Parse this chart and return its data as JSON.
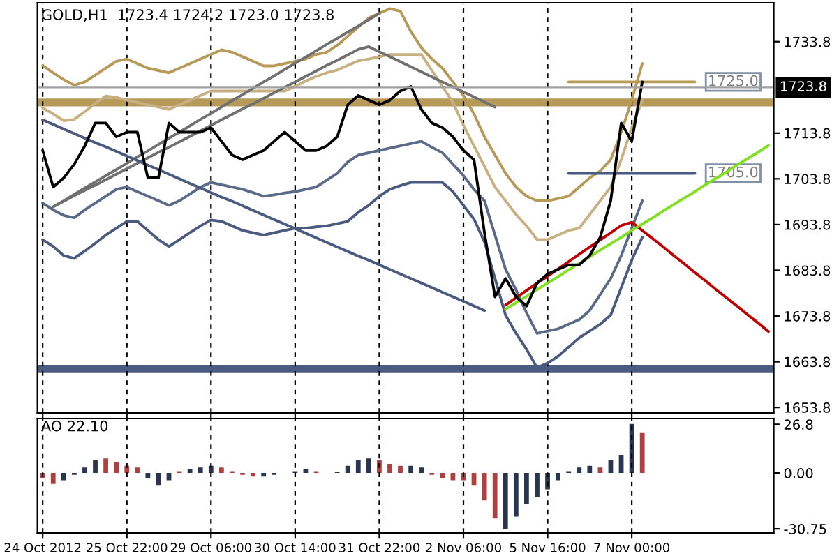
{
  "chart_data": [
    {
      "type": "line",
      "title": "GOLD,H1  1723.4 1724.2 1723.0 1723.8",
      "ylim": [
        1652.6,
        1742.3
      ],
      "categories": [
        null,
        null,
        null,
        null,
        null,
        null,
        null,
        null,
        null,
        null,
        null,
        null,
        null,
        null,
        null,
        null,
        null,
        null,
        null,
        null,
        null,
        null,
        null,
        null,
        null,
        null,
        null,
        null,
        null,
        null,
        null,
        null,
        null,
        null,
        null,
        null,
        null,
        null,
        null,
        null,
        null,
        null,
        null,
        null,
        null,
        null,
        null,
        null,
        null,
        null,
        null,
        null,
        null,
        null,
        null,
        null,
        null,
        null,
        null,
        null,
        null,
        null,
        null,
        null,
        null,
        null,
        null,
        null,
        null,
        null
      ],
      "yticks": [
        1653.8,
        1663.8,
        1673.8,
        1683.8,
        1693.8,
        1703.8,
        1713.8,
        1733.8
      ],
      "tick_labels": "y",
      "grid": "x",
      "series": [
        {
          "color": "#b89a58",
          "values": [
            1728.6,
            1727,
            1725.5,
            1724.3,
            1725,
            1726.5,
            1728,
            1729.5,
            1730,
            1729,
            1728,
            1727.5,
            1727,
            1728,
            1729,
            1730,
            1731,
            1732,
            1731.5,
            1730.5,
            1729.5,
            1728.5,
            1728.5,
            1729,
            1729.5,
            1730,
            1731,
            1731.5,
            1733,
            1735,
            1737,
            1739,
            1740,
            1741,
            1740.5,
            1736,
            1732.5,
            1730,
            1728,
            1725,
            1722,
            1718,
            1713,
            1709,
            1705,
            1702,
            1700,
            1699,
            1699,
            1699.5,
            1700,
            1702,
            1704,
            1705.5,
            1708,
            1714,
            1721,
            1729,
            null,
            null,
            null,
            null,
            null,
            null,
            null,
            null,
            null,
            null,
            null,
            null
          ]
        },
        {
          "color": "#c8b080",
          "values": [
            1719.3,
            1718,
            1716.5,
            1716.8,
            1718.5,
            1720.3,
            1721.9,
            1721.6,
            1721,
            1720.5,
            1720,
            1719.5,
            1719,
            1720,
            1721,
            1722,
            1723,
            1723,
            1723,
            1723,
            1723,
            1723,
            1723,
            1723,
            1724,
            1725.2,
            1726.2,
            1727,
            1727.6,
            1728.6,
            1729.6,
            1730,
            1730.5,
            1731,
            1731,
            1731,
            1731,
            1727.5,
            1724,
            1720.5,
            1715.5,
            1711,
            1706.5,
            1702,
            1699,
            1696,
            1693.5,
            1690.5,
            1690.5,
            1691.5,
            1692.5,
            1693,
            1696,
            1699,
            1702,
            1708,
            1715,
            1721,
            null,
            null,
            null,
            null,
            null,
            null,
            null,
            null,
            null,
            null,
            null,
            null
          ]
        },
        {
          "color": "#5a6a88",
          "values": [
            1698.5,
            1697,
            1695.8,
            1695.3,
            1697,
            1698.5,
            1700,
            1701.5,
            1702,
            1701,
            1700,
            1699,
            1698,
            1699,
            1700.5,
            1702,
            1703,
            1702.5,
            1702,
            1701.5,
            1700.8,
            1700,
            1700.3,
            1700.7,
            1701,
            1701.5,
            1702,
            1703.5,
            1705,
            1707.5,
            1709,
            1709.5,
            1710,
            1710.5,
            1711,
            1711.5,
            1712,
            1710.7,
            1709.5,
            1707,
            1704.5,
            1701.5,
            1699,
            1691.5,
            1684,
            1679.5,
            1674.5,
            1670,
            1670.5,
            1671,
            1672,
            1673,
            1675,
            1678.5,
            1682,
            1687,
            1693,
            1699,
            null,
            null,
            null,
            null,
            null,
            null,
            null,
            null,
            null,
            null,
            null,
            null
          ]
        },
        {
          "color": "#4a5a80",
          "values": [
            1690.5,
            1689,
            1687,
            1686.4,
            1688,
            1689.7,
            1691.5,
            1693,
            1694.5,
            1694.5,
            1692.5,
            1690.5,
            1689,
            1690.5,
            1692,
            1693.5,
            1694.8,
            1694.5,
            1693.5,
            1692.5,
            1692,
            1691.5,
            1692,
            1692.5,
            1693,
            1693,
            1693.3,
            1693.5,
            1694,
            1694.5,
            1696.5,
            1698,
            1700,
            1701.5,
            1702.3,
            1703,
            1703,
            1703,
            1703,
            1701,
            1698,
            1695,
            1690,
            1682,
            1674,
            1670,
            1666.5,
            1662.5,
            1663.5,
            1665,
            1667,
            1669,
            1670.5,
            1672,
            1674,
            1680,
            1686,
            1691,
            null,
            null,
            null,
            null,
            null,
            null,
            null,
            null,
            null,
            null,
            null,
            null
          ]
        },
        {
          "color": "#707070",
          "values": [
            null,
            1697.7,
            1699,
            1700.4,
            1701.8,
            1703.1,
            1704.5,
            1705.8,
            1707.2,
            1708.6,
            1709.9,
            1711.3,
            1712.7,
            1714,
            1715.4,
            1716.8,
            1718.1,
            1719.5,
            1720.9,
            1722.2,
            1723.6,
            1725,
            1726.3,
            1727.7,
            1729.1,
            1730.4,
            1731.8,
            1733.2,
            1734.5,
            1735.9,
            1737.2,
            1738.6,
            1740,
            null,
            null,
            null,
            null,
            null,
            null,
            null,
            null,
            null,
            null,
            null,
            null,
            null,
            null,
            null,
            null,
            null,
            null,
            null,
            null,
            null,
            null,
            null,
            null,
            null,
            null,
            null,
            null,
            null,
            null,
            null,
            null,
            null,
            null,
            null,
            null,
            null
          ]
        },
        {
          "color": "#707070",
          "values": [
            null,
            1697.7,
            1698.9,
            1700.1,
            1701.3,
            1702.4,
            1703.6,
            1704.8,
            1706,
            1707.2,
            1708.4,
            1709.6,
            1710.7,
            1711.9,
            1713.1,
            1714.3,
            1715.5,
            1716.7,
            1717.9,
            1719.1,
            1720.2,
            1721.4,
            1722.6,
            1723.8,
            1725,
            1726.2,
            1727.4,
            1728.6,
            1729.7,
            1730.9,
            1732.1,
            1732.7,
            1731.6,
            1730.5,
            1729.4,
            1728.3,
            1727.2,
            1726.1,
            1725,
            1723.9,
            1722.8,
            1721.7,
            1720.6,
            1719.5,
            null,
            null,
            null,
            null,
            null,
            null,
            null,
            null,
            null,
            null,
            null,
            null,
            null,
            null,
            null,
            null,
            null,
            null,
            null,
            null,
            null,
            null,
            null,
            null,
            null,
            null
          ]
        },
        {
          "color": "#4a5a80",
          "values": [
            1716.7,
            1715.7,
            1714.7,
            1713.7,
            1712.7,
            1711.7,
            1710.8,
            1709.8,
            1708.8,
            1707.8,
            1706.8,
            1705.8,
            1704.8,
            1703.8,
            1702.8,
            1701.8,
            1700.8,
            1699.8,
            1698.9,
            1697.9,
            1696.9,
            1695.9,
            1694.9,
            1693.9,
            1692.9,
            1691.9,
            1690.9,
            1689.9,
            1688.9,
            1687.9,
            1686.9,
            1686,
            1685,
            1684,
            1683,
            1682,
            1681,
            1680,
            1679,
            1678,
            1677,
            1676,
            1675,
            null,
            null,
            null,
            null,
            null,
            null,
            null,
            null,
            null,
            null,
            null,
            null,
            null,
            null,
            null,
            null,
            null,
            null,
            null,
            null,
            null,
            null,
            null,
            null,
            null,
            null,
            null
          ]
        },
        {
          "color": "#c00000",
          "values": [
            null,
            null,
            null,
            null,
            null,
            null,
            null,
            null,
            null,
            null,
            null,
            null,
            null,
            null,
            null,
            null,
            null,
            null,
            null,
            null,
            null,
            null,
            null,
            null,
            null,
            null,
            null,
            null,
            null,
            null,
            null,
            null,
            null,
            null,
            null,
            null,
            null,
            null,
            null,
            null,
            null,
            null,
            null,
            null,
            1676.2,
            1677.8,
            1679.4,
            1681,
            1682.5,
            1684.1,
            1685.7,
            1687.3,
            1688.9,
            1690.4,
            1692,
            1693.6,
            1694.3,
            1692.5,
            1690.7,
            1688.9,
            1687,
            1685.2,
            1683.3,
            1681.5,
            1679.6,
            1677.8,
            1676,
            1674.1,
            1672.3,
            1670.4
          ]
        },
        {
          "color": "#80e020",
          "values": [
            null,
            null,
            null,
            null,
            null,
            null,
            null,
            null,
            null,
            null,
            null,
            null,
            null,
            null,
            null,
            null,
            null,
            null,
            null,
            null,
            null,
            null,
            null,
            null,
            null,
            null,
            null,
            null,
            null,
            null,
            null,
            null,
            null,
            null,
            null,
            null,
            null,
            null,
            null,
            null,
            null,
            null,
            null,
            null,
            1675.3,
            1676.7,
            1678.1,
            1679.6,
            1681,
            1682.4,
            1683.9,
            1685.3,
            1686.7,
            1688.2,
            1689.6,
            1691,
            1692.5,
            1693.9,
            1695.3,
            1696.8,
            1698.2,
            1699.6,
            1701,
            1702.5,
            1703.9,
            1705.3,
            1706.8,
            1708.2,
            1709.6,
            1711.1
          ]
        },
        {
          "color": "#b89a58",
          "values": [
            null,
            null,
            null,
            null,
            null,
            null,
            null,
            null,
            null,
            null,
            null,
            null,
            null,
            null,
            null,
            null,
            null,
            null,
            null,
            null,
            null,
            null,
            null,
            null,
            null,
            null,
            null,
            null,
            null,
            null,
            null,
            null,
            null,
            null,
            null,
            null,
            null,
            null,
            null,
            null,
            null,
            null,
            null,
            null,
            null,
            null,
            null,
            null,
            null,
            null,
            1725,
            1725,
            1725,
            1725,
            1725,
            1725,
            1725,
            1725,
            1725,
            1725,
            1725,
            1725,
            1725,
            null,
            null,
            null,
            null,
            null,
            null,
            null
          ]
        },
        {
          "color": "#4a5a80",
          "values": [
            null,
            null,
            null,
            null,
            null,
            null,
            null,
            null,
            null,
            null,
            null,
            null,
            null,
            null,
            null,
            null,
            null,
            null,
            null,
            null,
            null,
            null,
            null,
            null,
            null,
            null,
            null,
            null,
            null,
            null,
            null,
            null,
            null,
            null,
            null,
            null,
            null,
            null,
            null,
            null,
            null,
            null,
            null,
            null,
            null,
            null,
            null,
            null,
            null,
            null,
            1705,
            1705,
            1705,
            1705,
            1705,
            1705,
            1705,
            1705,
            1705,
            1705,
            1705,
            1705,
            1705,
            null,
            null,
            null,
            null,
            null,
            null,
            null
          ]
        },
        {
          "color": "#000000",
          "values": [
            1710,
            1702,
            1704,
            1707,
            1711,
            1716,
            1716,
            1713,
            1714,
            1714,
            1704,
            1704,
            1716,
            1714,
            1714,
            1714,
            1715,
            1712,
            1709,
            1708,
            1709,
            1710,
            1712,
            1714,
            1712,
            1710,
            1710,
            1711,
            1713,
            1720,
            1722,
            1721,
            1720,
            1721,
            1723,
            1724,
            1719,
            1716,
            1715,
            1713,
            1710,
            1708,
            1692,
            1678,
            1682,
            1678,
            1676,
            1681,
            1683,
            1684,
            1685,
            1685,
            1687,
            1691,
            1699,
            1716,
            1712,
            1725,
            null,
            null,
            null,
            null,
            null,
            null,
            null,
            null,
            null,
            null,
            null,
            null
          ]
        }
      ],
      "ref_lines": [
        {
          "axis": "y",
          "value": 1720.5,
          "color": "#b89a58"
        },
        {
          "axis": "y",
          "value": 1662.2,
          "color": "#4a5a80"
        },
        {
          "axis": "y",
          "value": 1723.8,
          "label": "1723.8",
          "color": "#a0a0a0"
        }
      ],
      "annotations": [
        {
          "text": "1725.0",
          "y": 1725.0
        },
        {
          "text": "1705.0",
          "y": 1705.0
        }
      ]
    },
    {
      "type": "bar",
      "title": "AO 22.10",
      "ylim": [
        -33,
        30
      ],
      "categories": [
        "24 Oct 2012",
        null,
        null,
        null,
        null,
        null,
        null,
        null,
        "25 Oct 22:00",
        null,
        null,
        null,
        null,
        null,
        null,
        null,
        "29 Oct 06:00",
        null,
        null,
        null,
        null,
        null,
        null,
        null,
        "30 Oct 14:00",
        null,
        null,
        null,
        null,
        null,
        null,
        null,
        "31 Oct 22:00",
        null,
        null,
        null,
        null,
        null,
        null,
        null,
        "2 Nov 06:00",
        null,
        null,
        null,
        null,
        null,
        null,
        null,
        "5 Nov 16:00",
        null,
        null,
        null,
        null,
        null,
        null,
        null,
        "7 Nov 00:00",
        null,
        null,
        null,
        null,
        null,
        null,
        null,
        null,
        null,
        null,
        null,
        null,
        null
      ],
      "yticks": [
        {
          "value": 26.8,
          "label": "26.8"
        },
        {
          "value": 0,
          "label": "0.00"
        },
        {
          "value": -30.75,
          "label": "-30.75"
        }
      ],
      "grid": "x",
      "values": [
        -3,
        -6,
        -4,
        -1,
        3,
        7,
        8,
        6,
        4,
        3,
        -3,
        -7,
        -4,
        1,
        2,
        3,
        4,
        3,
        1,
        -1,
        -2,
        -2,
        -1,
        0,
        1,
        2,
        1,
        null,
        0.5,
        4,
        7,
        8,
        7,
        5,
        4,
        4,
        3,
        -1,
        -3,
        -4,
        -4,
        -7,
        -15,
        -25,
        -31,
        -24,
        -17,
        -13,
        -9,
        -4,
        1,
        3,
        4,
        3,
        7,
        10,
        27,
        22,
        null,
        null,
        null,
        null,
        null,
        null,
        null,
        null,
        null,
        null,
        null,
        null
      ],
      "colors": [
        "#b04040",
        "#b04040",
        "#2a3550",
        "#2a3550",
        "#2a3550",
        "#2a3550",
        "#b04040",
        "#b04040",
        "#b04040",
        "#b04040",
        "#2a3550",
        "#2a3550",
        "#2a3550",
        "#b04040",
        "#2a3550",
        "#2a3550",
        "#2a3550",
        "#b04040",
        "#b04040",
        "#b04040",
        "#b04040",
        "#2a3550",
        "#2a3550",
        "#2a3550",
        "#2a3550",
        "#2a3550",
        "#b04040",
        "#2a3550",
        "#2a3550",
        "#2a3550",
        "#2a3550",
        "#2a3550",
        "#b04040",
        "#b04040",
        "#b04040",
        "#2a3550",
        "#2a3550",
        "#b04040",
        "#b04040",
        "#b04040",
        "#b04040",
        "#b04040",
        "#b04040",
        "#b04040",
        "#2a3550",
        "#2a3550",
        "#2a3550",
        "#2a3550",
        "#2a3550",
        "#2a3550",
        "#2a3550",
        "#2a3550",
        "#2a3550",
        "#b04040",
        "#2a3550",
        "#2a3550",
        "#2a3550",
        "#b04040",
        "#2a3550",
        "#2a3550",
        "#2a3550",
        "#2a3550",
        "#2a3550",
        "#2a3550",
        "#2a3550",
        "#2a3550",
        "#2a3550",
        "#2a3550",
        "#2a3550",
        "#2a3550"
      ]
    }
  ]
}
